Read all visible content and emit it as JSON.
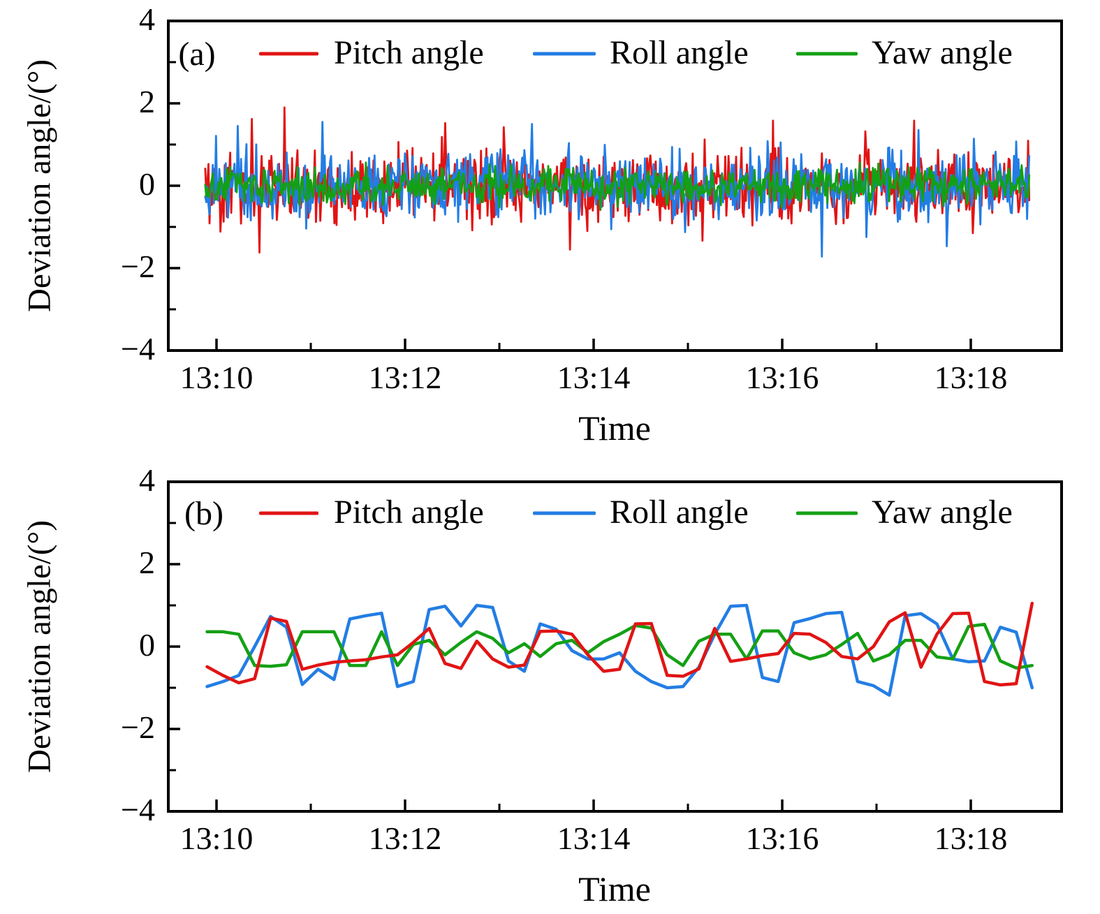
{
  "figure": {
    "background": "#ffffff",
    "axis_color": "#000000"
  },
  "chart_data": [
    {
      "panel_label": "(a)",
      "type": "line",
      "xlabel": "Time",
      "ylabel": "Deviation angle/(°)",
      "x_tick_labels": [
        "13:10",
        "13:12",
        "13:14",
        "13:16",
        "13:18"
      ],
      "x_tick_minutes": [
        0,
        2,
        4,
        6,
        8
      ],
      "x_minor_tick_minutes": [
        1,
        3,
        5,
        7
      ],
      "y_tick_labels": [
        "4",
        "2",
        "0",
        "−2",
        "−4"
      ],
      "y_tick_values": [
        4,
        2,
        0,
        -2,
        -4
      ],
      "y_minor_tick_values": [
        3,
        1,
        -1,
        -3
      ],
      "ylim": [
        -4,
        4
      ],
      "x_range_minutes": [
        -0.51,
        8.96
      ],
      "grid": false,
      "legend_position": "top-inside",
      "line_width": 2.8,
      "draw_order": [
        0,
        1,
        2
      ],
      "series": [
        {
          "name": "Pitch angle",
          "color": "#e11414",
          "representation": "random-noise-about-zero",
          "n": 760,
          "t_start": -0.12,
          "t_end": 8.62,
          "amplitude": 1.0,
          "seed": 101,
          "spike_probability": 0.05,
          "spike_gain": 1.45,
          "clip": 1.65,
          "extremes": [
            [
              0.38,
              1.62
            ],
            [
              0.45,
              -1.62
            ],
            [
              0.72,
              1.9
            ],
            [
              2.42,
              1.52
            ],
            [
              3.05,
              1.42
            ],
            [
              3.75,
              -1.55
            ],
            [
              5.9,
              1.58
            ],
            [
              6.88,
              1.32
            ],
            [
              7.4,
              1.58
            ]
          ]
        },
        {
          "name": "Roll angle",
          "color": "#237de4",
          "representation": "random-noise-about-zero",
          "n": 760,
          "t_start": -0.12,
          "t_end": 8.62,
          "amplitude": 0.97,
          "seed": 202,
          "spike_probability": 0.05,
          "spike_gain": 1.4,
          "clip": 1.55,
          "extremes": [
            [
              0.22,
              1.45
            ],
            [
              1.12,
              1.55
            ],
            [
              3.35,
              1.5
            ],
            [
              6.42,
              -1.72
            ],
            [
              7.45,
              1.35
            ]
          ]
        },
        {
          "name": "Yaw angle",
          "color": "#14a014",
          "representation": "random-noise-about-zero",
          "n": 760,
          "t_start": -0.12,
          "t_end": 8.62,
          "amplitude": 0.52,
          "seed": 303,
          "spike_probability": 0.04,
          "spike_gain": 1.25,
          "clip": 0.62,
          "extremes": []
        }
      ]
    },
    {
      "panel_label": "(b)",
      "type": "line",
      "xlabel": "Time",
      "ylabel": "Deviation angle/(°)",
      "x_tick_labels": [
        "13:10",
        "13:12",
        "13:14",
        "13:16",
        "13:18"
      ],
      "x_tick_minutes": [
        0,
        2,
        4,
        6,
        8
      ],
      "x_minor_tick_minutes": [
        1,
        3,
        5,
        7
      ],
      "y_tick_labels": [
        "4",
        "2",
        "0",
        "−2",
        "−4"
      ],
      "y_tick_values": [
        4,
        2,
        0,
        -2,
        -4
      ],
      "y_minor_tick_values": [
        3,
        1,
        -1,
        -3
      ],
      "ylim": [
        -4,
        4
      ],
      "x_range_minutes": [
        -0.51,
        8.96
      ],
      "grid": false,
      "legend_position": "top-inside",
      "line_width": 4.5,
      "draw_order": [
        1,
        2,
        0
      ],
      "series": [
        {
          "name": "Pitch angle",
          "color": "#e11414",
          "t_start": -0.1,
          "t_end": 8.65,
          "values": [
            -0.49,
            -0.7,
            -0.88,
            -0.78,
            0.69,
            0.61,
            -0.55,
            -0.45,
            -0.38,
            -0.35,
            -0.32,
            -0.25,
            -0.2,
            0.1,
            0.44,
            -0.41,
            -0.53,
            0.13,
            -0.3,
            -0.5,
            -0.45,
            0.37,
            0.38,
            0.3,
            -0.2,
            -0.6,
            -0.55,
            0.55,
            0.56,
            -0.7,
            -0.72,
            -0.54,
            0.44,
            -0.36,
            -0.3,
            -0.22,
            -0.17,
            0.32,
            0.3,
            0.1,
            -0.24,
            -0.3,
            0.0,
            0.6,
            0.82,
            -0.5,
            0.3,
            0.8,
            0.81,
            -0.85,
            -0.93,
            -0.9,
            1.05
          ]
        },
        {
          "name": "Roll angle",
          "color": "#237de4",
          "t_start": -0.1,
          "t_end": 8.65,
          "values": [
            -0.97,
            -0.85,
            -0.7,
            0.0,
            0.73,
            0.47,
            -0.92,
            -0.55,
            -0.8,
            0.67,
            0.75,
            0.81,
            -0.97,
            -0.85,
            0.9,
            0.98,
            0.5,
            1.0,
            0.95,
            -0.35,
            -0.6,
            0.55,
            0.42,
            -0.1,
            -0.3,
            -0.3,
            -0.15,
            -0.6,
            -0.85,
            -1.0,
            -0.97,
            -0.5,
            0.3,
            0.98,
            1.0,
            -0.75,
            -0.85,
            0.58,
            0.68,
            0.8,
            0.83,
            -0.85,
            -0.95,
            -1.18,
            0.75,
            0.8,
            0.55,
            -0.3,
            -0.37,
            -0.35,
            0.47,
            0.35,
            -1.0
          ]
        },
        {
          "name": "Yaw angle",
          "color": "#14a014",
          "t_start": -0.1,
          "t_end": 8.65,
          "values": [
            0.36,
            0.36,
            0.3,
            -0.46,
            -0.48,
            -0.44,
            0.36,
            0.36,
            0.36,
            -0.46,
            -0.46,
            0.36,
            -0.46,
            0.05,
            0.15,
            -0.2,
            0.1,
            0.36,
            0.2,
            -0.15,
            0.07,
            -0.24,
            0.07,
            0.15,
            -0.15,
            0.12,
            0.3,
            0.51,
            0.45,
            -0.2,
            -0.46,
            0.13,
            0.3,
            0.3,
            -0.3,
            0.38,
            0.38,
            -0.15,
            -0.3,
            -0.2,
            0.05,
            0.32,
            -0.35,
            -0.2,
            0.15,
            0.15,
            -0.25,
            -0.3,
            0.49,
            0.54,
            -0.35,
            -0.52,
            -0.46
          ]
        }
      ]
    }
  ]
}
